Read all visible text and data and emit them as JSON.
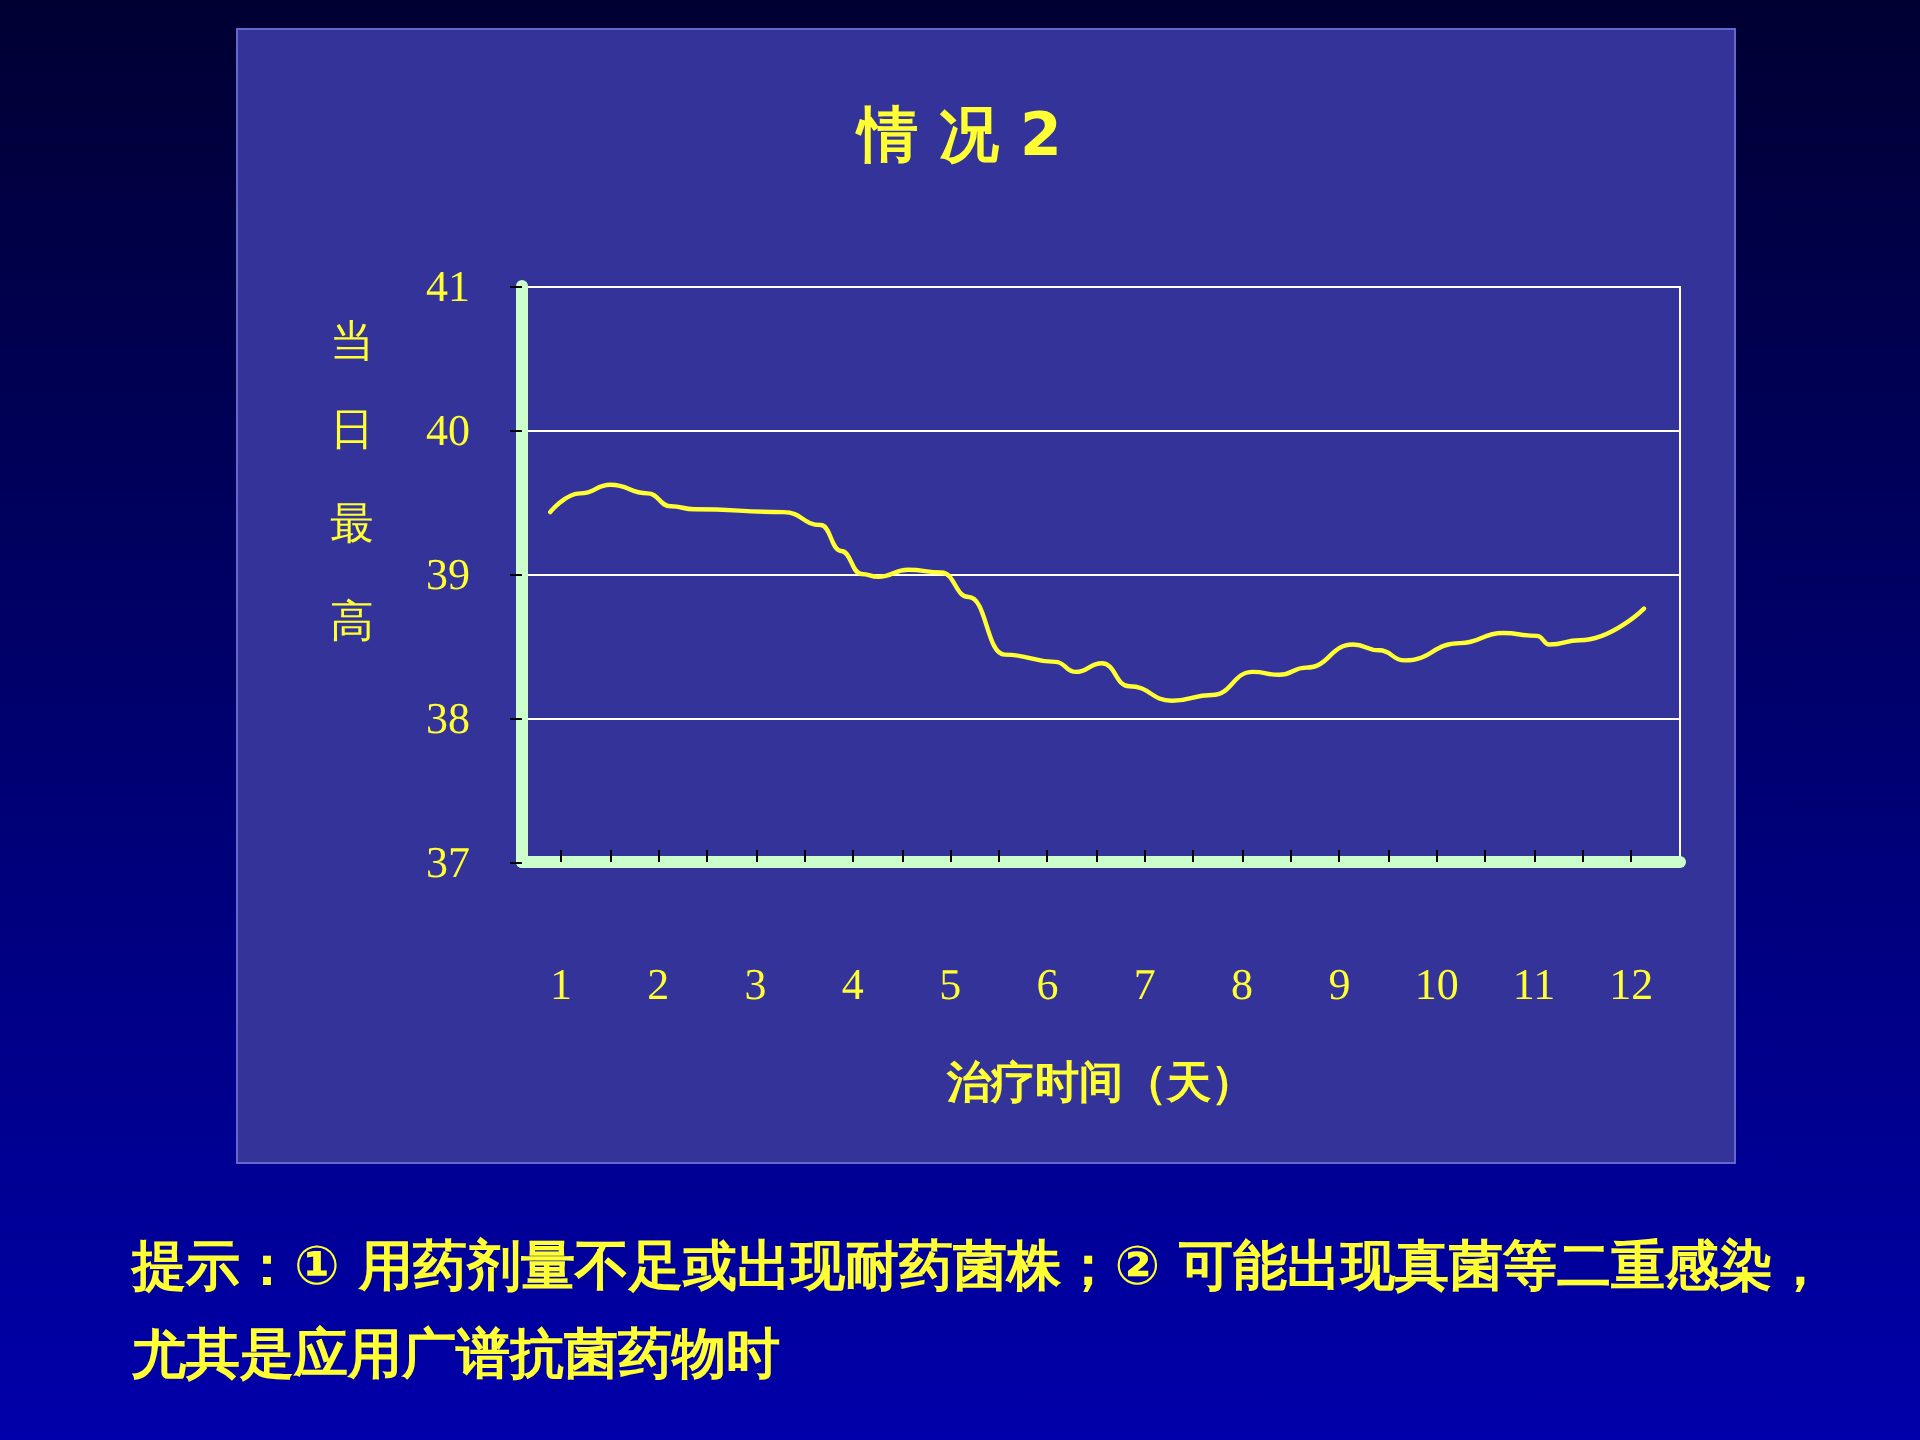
{
  "chart_data": {
    "type": "line",
    "title": "情 况 2",
    "xlabel": "治疗时间（天）",
    "ylabel": "当日最高",
    "annotations": [
      "提示：① 用药剂量不足或出现耐药菌株；② 可能出现真菌等二重感染，尤其是应用广谱抗菌药物时"
    ],
    "series": [
      {
        "color": "#ffff33",
        "x": [
          0.89,
          1.2,
          1.51,
          1.89,
          2.13,
          2.37,
          3.29,
          3.67,
          3.88,
          4.09,
          4.26,
          4.57,
          4.91,
          5.19,
          5.56,
          6.08,
          6.29,
          6.56,
          6.84,
          7.28,
          7.69,
          8.11,
          8.38,
          8.66,
          9.14,
          9.41,
          9.67,
          10.24,
          10.68,
          11.03,
          11.16,
          11.47,
          12.13
        ],
        "values": [
          39.43,
          39.56,
          39.62,
          39.56,
          39.47,
          39.45,
          39.43,
          39.34,
          39.16,
          39.0,
          38.98,
          39.03,
          39.01,
          38.84,
          38.44,
          38.39,
          38.32,
          38.38,
          38.22,
          38.12,
          38.16,
          38.32,
          38.3,
          38.35,
          38.51,
          38.47,
          38.4,
          38.52,
          38.59,
          38.57,
          38.51,
          38.54,
          38.76
        ]
      }
    ],
    "xlim": [
      0.6,
      12.5
    ],
    "xticks": [
      1,
      2,
      3,
      4,
      5,
      6,
      7,
      8,
      9,
      10,
      11,
      12,
      {
        "value": 1.5,
        "label": null
      },
      {
        "value": 2.5,
        "label": null
      },
      {
        "value": 3.5,
        "label": null
      },
      {
        "value": 4.5,
        "label": null
      },
      {
        "value": 5.5,
        "label": null
      },
      {
        "value": 6.5,
        "label": null
      },
      {
        "value": 7.5,
        "label": null
      },
      {
        "value": 8.5,
        "label": null
      },
      {
        "value": 9.5,
        "label": null
      },
      {
        "value": 10.5,
        "label": null
      },
      {
        "value": 11.5,
        "label": null
      }
    ],
    "ylim": [
      37,
      41
    ],
    "yticks": [
      37,
      38,
      39,
      40,
      41
    ],
    "grid": "y",
    "marker": "none",
    "line_style": "solid"
  }
}
